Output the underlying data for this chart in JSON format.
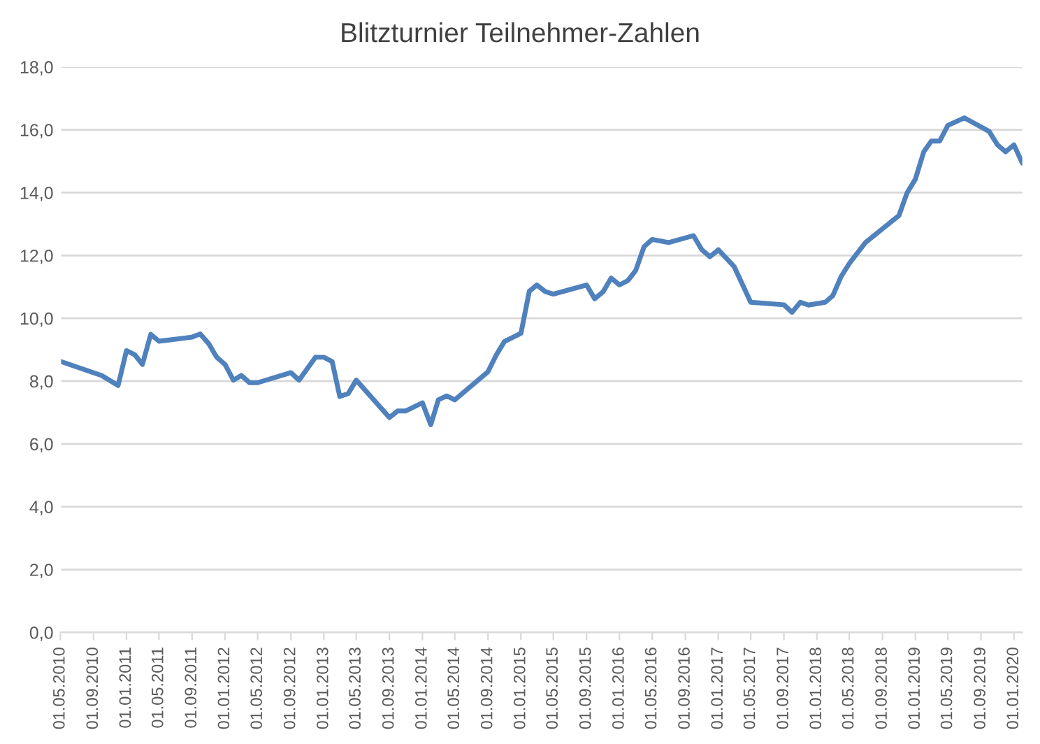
{
  "chart_data": {
    "type": "line",
    "title": "Blitzturnier Teilnehmer-Zahlen",
    "x": [
      "2010-05-01",
      "2010-10-01",
      "2010-12-01",
      "2011-01-01",
      "2011-02-01",
      "2011-03-01",
      "2011-04-01",
      "2011-05-01",
      "2011-09-01",
      "2011-10-01",
      "2011-11-01",
      "2011-12-01",
      "2012-01-01",
      "2012-02-01",
      "2012-03-01",
      "2012-04-01",
      "2012-05-01",
      "2012-09-01",
      "2012-10-01",
      "2012-12-01",
      "2013-01-01",
      "2013-02-01",
      "2013-03-01",
      "2013-04-01",
      "2013-05-01",
      "2013-09-01",
      "2013-10-01",
      "2013-11-01",
      "2014-01-01",
      "2014-02-01",
      "2014-03-01",
      "2014-04-01",
      "2014-05-01",
      "2014-09-01",
      "2014-10-01",
      "2014-11-01",
      "2015-01-01",
      "2015-02-01",
      "2015-03-01",
      "2015-04-01",
      "2015-05-01",
      "2015-09-01",
      "2015-10-01",
      "2015-11-01",
      "2015-12-01",
      "2016-01-01",
      "2016-02-01",
      "2016-03-01",
      "2016-04-01",
      "2016-05-01",
      "2016-07-01",
      "2016-10-01",
      "2016-11-01",
      "2016-12-01",
      "2017-01-01",
      "2017-03-01",
      "2017-05-01",
      "2017-09-01",
      "2017-10-01",
      "2017-11-01",
      "2017-12-01",
      "2018-02-01",
      "2018-03-01",
      "2018-04-01",
      "2018-05-01",
      "2018-07-01",
      "2018-11-01",
      "2018-12-01",
      "2019-01-01",
      "2019-02-01",
      "2019-03-01",
      "2019-04-01",
      "2019-05-01",
      "2019-07-01",
      "2019-10-01",
      "2019-11-01",
      "2019-12-01",
      "2020-01-01",
      "2020-02-01"
    ],
    "series": [
      {
        "color": "#4f81bd",
        "values": [
          8.63,
          8.18,
          7.86,
          8.97,
          8.84,
          8.53,
          9.49,
          9.27,
          9.4,
          9.5,
          9.2,
          8.76,
          8.53,
          8.03,
          8.18,
          7.95,
          7.95,
          8.27,
          8.03,
          8.76,
          8.76,
          8.62,
          7.51,
          7.6,
          8.03,
          6.84,
          7.05,
          7.05,
          7.31,
          6.61,
          7.4,
          7.53,
          7.4,
          8.3,
          8.82,
          9.26,
          9.52,
          10.86,
          11.06,
          10.85,
          10.77,
          11.06,
          10.62,
          10.84,
          11.28,
          11.06,
          11.2,
          11.52,
          12.28,
          12.51,
          12.41,
          12.63,
          12.18,
          11.96,
          12.18,
          11.64,
          10.51,
          10.43,
          10.19,
          10.51,
          10.42,
          10.51,
          10.72,
          11.33,
          11.74,
          12.42,
          13.27,
          13.99,
          14.43,
          15.3,
          15.64,
          15.64,
          16.14,
          16.38,
          15.95,
          15.52,
          15.3,
          15.52,
          14.94
        ]
      }
    ],
    "xlim": [
      "2010-05-01",
      "2020-02-01"
    ],
    "xticks": [
      {
        "value": "2010-05-01",
        "label": "01.05.2010"
      },
      {
        "value": "2010-09-01",
        "label": "01.09.2010"
      },
      {
        "value": "2011-01-01",
        "label": "01.01.2011"
      },
      {
        "value": "2011-05-01",
        "label": "01.05.2011"
      },
      {
        "value": "2011-09-01",
        "label": "01.09.2011"
      },
      {
        "value": "2012-01-01",
        "label": "01.01.2012"
      },
      {
        "value": "2012-05-01",
        "label": "01.05.2012"
      },
      {
        "value": "2012-09-01",
        "label": "01.09.2012"
      },
      {
        "value": "2013-01-01",
        "label": "01.01.2013"
      },
      {
        "value": "2013-05-01",
        "label": "01.05.2013"
      },
      {
        "value": "2013-09-01",
        "label": "01.09.2013"
      },
      {
        "value": "2014-01-01",
        "label": "01.01.2014"
      },
      {
        "value": "2014-05-01",
        "label": "01.05.2014"
      },
      {
        "value": "2014-09-01",
        "label": "01.09.2014"
      },
      {
        "value": "2015-01-01",
        "label": "01.01.2015"
      },
      {
        "value": "2015-05-01",
        "label": "01.05.2015"
      },
      {
        "value": "2015-09-01",
        "label": "01.09.2015"
      },
      {
        "value": "2016-01-01",
        "label": "01.01.2016"
      },
      {
        "value": "2016-05-01",
        "label": "01.05.2016"
      },
      {
        "value": "2016-09-01",
        "label": "01.09.2016"
      },
      {
        "value": "2017-01-01",
        "label": "01.01.2017"
      },
      {
        "value": "2017-05-01",
        "label": "01.05.2017"
      },
      {
        "value": "2017-09-01",
        "label": "01.09.2017"
      },
      {
        "value": "2018-01-01",
        "label": "01.01.2018"
      },
      {
        "value": "2018-05-01",
        "label": "01.05.2018"
      },
      {
        "value": "2018-09-01",
        "label": "01.09.2018"
      },
      {
        "value": "2019-01-01",
        "label": "01.01.2019"
      },
      {
        "value": "2019-05-01",
        "label": "01.05.2019"
      },
      {
        "value": "2019-09-01",
        "label": "01.09.2019"
      },
      {
        "value": "2020-01-01",
        "label": "01.01.2020"
      }
    ],
    "ylim": [
      0,
      18
    ],
    "yticks": [
      {
        "value": 0,
        "label": "0,0"
      },
      {
        "value": 2,
        "label": "2,0"
      },
      {
        "value": 4,
        "label": "4,0"
      },
      {
        "value": 6,
        "label": "6,0"
      },
      {
        "value": 8,
        "label": "8,0"
      },
      {
        "value": 10,
        "label": "10,0"
      },
      {
        "value": 12,
        "label": "12,0"
      },
      {
        "value": 14,
        "label": "14,0"
      },
      {
        "value": 16,
        "label": "16,0"
      },
      {
        "value": 18,
        "label": "18,0"
      }
    ],
    "grid": "y",
    "marker": "none",
    "line_style": "solid"
  }
}
